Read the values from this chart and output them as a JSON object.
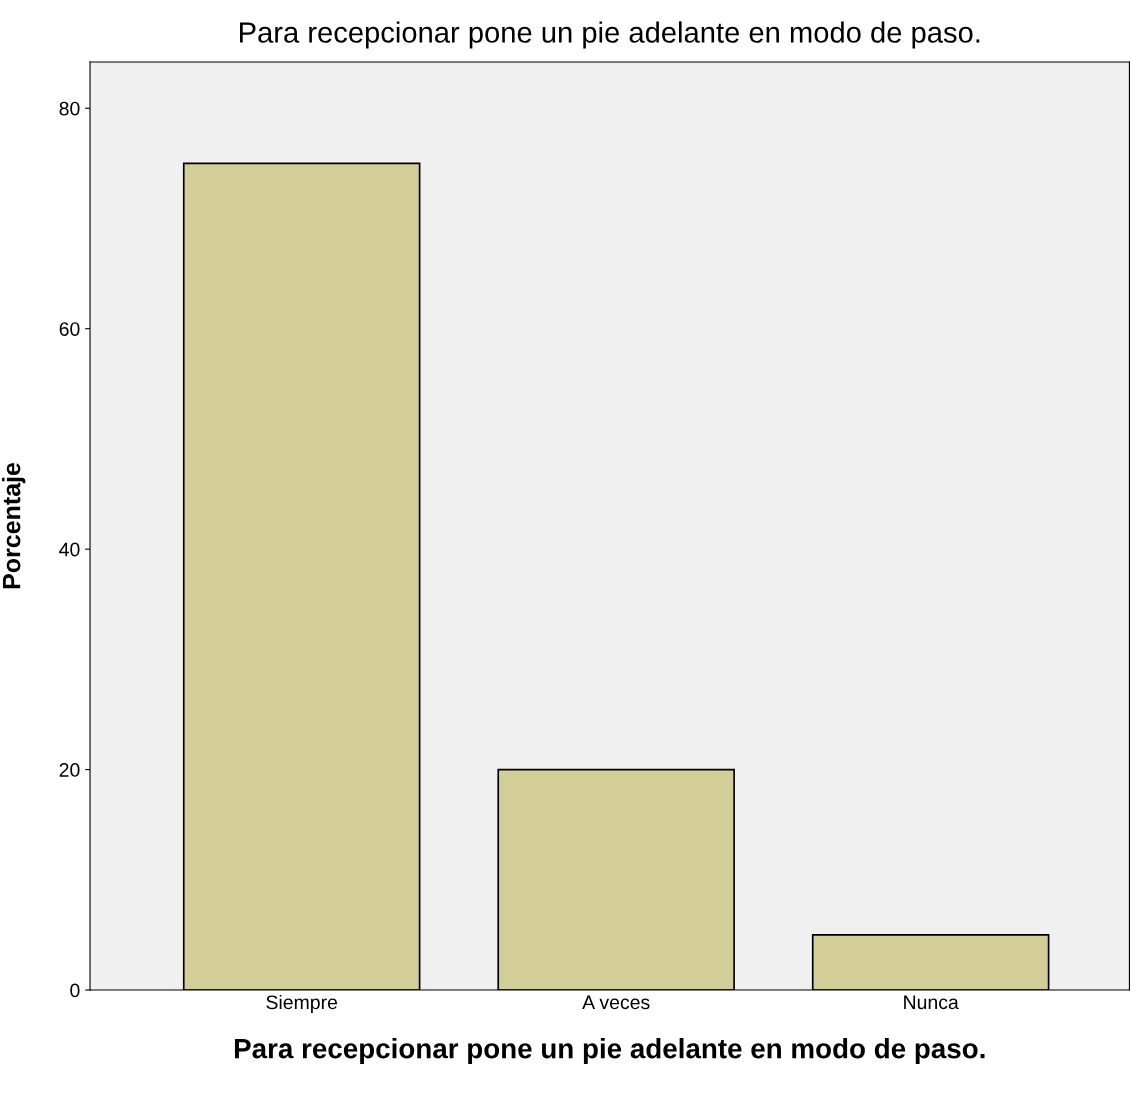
{
  "chart_data": {
    "type": "bar",
    "title": "Para recepcionar pone un pie adelante en modo de paso.",
    "xlabel": "Para recepcionar pone un pie adelante en modo de paso.",
    "ylabel": "Porcentaje",
    "categories": [
      "Siempre",
      "A veces",
      "Nunca"
    ],
    "values": [
      75,
      20,
      5
    ],
    "color": "#d3ce97",
    "ylim": [
      0,
      84.2
    ],
    "yticks": [
      0,
      20,
      40,
      60,
      80
    ],
    "grid": false,
    "legend": false
  }
}
